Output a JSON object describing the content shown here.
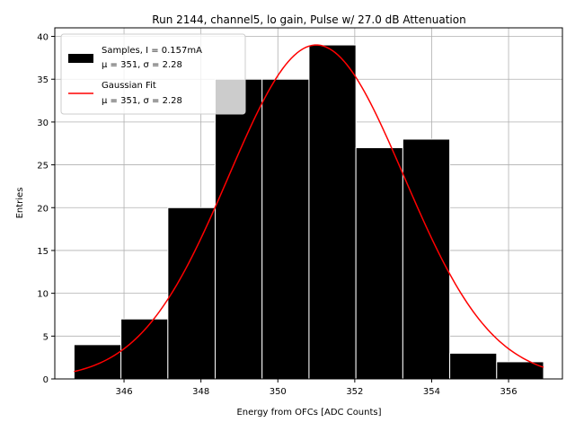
{
  "chart_data": {
    "type": "bar",
    "title": "Run 2144, channel5, lo gain, Pulse w/ 27.0 dB Attenuation",
    "xlabel": "Energy from OFCs [ADC Counts]",
    "ylabel": "Entries",
    "xlim": [
      344.2,
      357.4
    ],
    "ylim": [
      0,
      41
    ],
    "xticks": [
      346,
      348,
      350,
      352,
      354,
      356
    ],
    "yticks": [
      0,
      5,
      10,
      15,
      20,
      25,
      30,
      35,
      40
    ],
    "grid": true,
    "legend_position": "top-left",
    "histogram": {
      "name": "Samples, I = 0.157mA",
      "name_line2": "μ = 351, σ = 2.28",
      "bin_edges": [
        344.7,
        345.92,
        347.14,
        348.37,
        349.59,
        350.81,
        352.03,
        353.25,
        354.47,
        355.69,
        356.91
      ],
      "counts": [
        4,
        7,
        20,
        35,
        35,
        39,
        27,
        28,
        3,
        2
      ],
      "color": "#000000"
    },
    "fit": {
      "name": "Gaussian Fit",
      "name_line2": "μ = 351, σ = 2.28",
      "amplitude": 39,
      "mu": 351,
      "sigma": 2.28,
      "x_range": [
        344.7,
        356.91
      ],
      "color": "#ff0000"
    }
  }
}
